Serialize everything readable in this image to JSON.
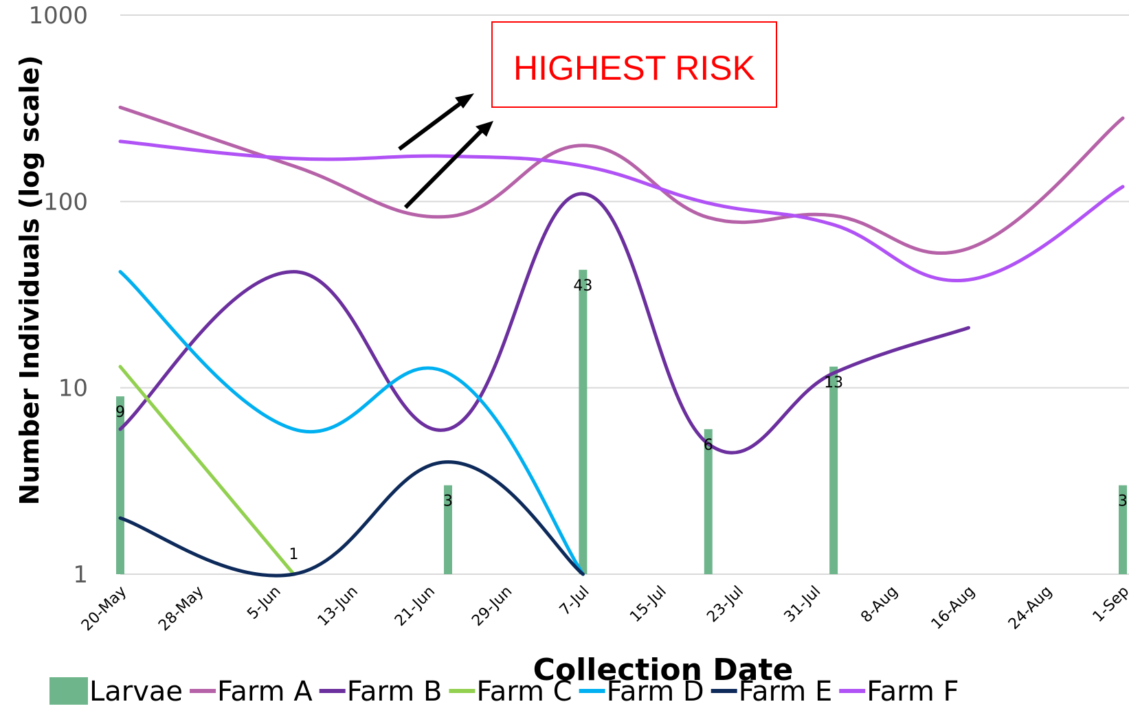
{
  "chart_data": {
    "type": "bar+line",
    "scale": "log",
    "ylabel": "Number Individuals (log scale)",
    "xlabel": "Collection Date",
    "ylim": [
      1,
      1000
    ],
    "yticks": [
      "1",
      "10",
      "100",
      "1000"
    ],
    "xticks": [
      "20-May",
      "28-May",
      "5-Jun",
      "13-Jun",
      "21-Jun",
      "29-Jun",
      "7-Jul",
      "15-Jul",
      "23-Jul",
      "31-Jul",
      "8-Aug",
      "16-Aug",
      "24-Aug",
      "1-Sep"
    ],
    "xlim": [
      "2019-05-20",
      "2019-09-01"
    ],
    "grid": true,
    "legend_position": "bottom",
    "annotation": "HIGHEST RISK",
    "bars": {
      "name": "Larvae",
      "color": "#6fb58c",
      "points": [
        {
          "date": "2019-05-20",
          "value": 9,
          "label": "9"
        },
        {
          "date": "2019-06-07",
          "value": 1,
          "label": "1"
        },
        {
          "date": "2019-06-23",
          "value": 3,
          "label": "3"
        },
        {
          "date": "2019-07-07",
          "value": 43,
          "label": "43"
        },
        {
          "date": "2019-07-20",
          "value": 6,
          "label": "6"
        },
        {
          "date": "2019-08-02",
          "value": 13,
          "label": "13"
        },
        {
          "date": "2019-09-01",
          "value": 3,
          "label": "3"
        }
      ]
    },
    "series": [
      {
        "name": "Farm A",
        "color": "#b662a8",
        "points": [
          [
            "2019-05-20",
            320
          ],
          [
            "2019-06-07",
            155
          ],
          [
            "2019-06-23",
            83
          ],
          [
            "2019-07-07",
            200
          ],
          [
            "2019-07-20",
            82
          ],
          [
            "2019-08-02",
            84
          ],
          [
            "2019-08-16",
            56
          ],
          [
            "2019-09-01",
            280
          ]
        ]
      },
      {
        "name": "Farm B",
        "color": "#6b2f9e",
        "points": [
          [
            "2019-05-20",
            6
          ],
          [
            "2019-06-07",
            42
          ],
          [
            "2019-06-23",
            6
          ],
          [
            "2019-07-07",
            110
          ],
          [
            "2019-07-20",
            5
          ],
          [
            "2019-08-02",
            12
          ],
          [
            "2019-08-16",
            21
          ]
        ]
      },
      {
        "name": "Farm C",
        "color": "#92d050",
        "points": [
          [
            "2019-05-20",
            13
          ],
          [
            "2019-06-07",
            1
          ]
        ]
      },
      {
        "name": "Farm D",
        "color": "#00b0f0",
        "points": [
          [
            "2019-05-20",
            42
          ],
          [
            "2019-06-07",
            6
          ],
          [
            "2019-06-23",
            12
          ],
          [
            "2019-07-07",
            1
          ]
        ]
      },
      {
        "name": "Farm E",
        "color": "#0d2a5a",
        "points": [
          [
            "2019-05-20",
            2
          ],
          [
            "2019-06-07",
            1
          ],
          [
            "2019-06-23",
            4
          ],
          [
            "2019-07-07",
            1
          ]
        ]
      },
      {
        "name": "Farm F",
        "color": "#b052f5",
        "points": [
          [
            "2019-05-20",
            210
          ],
          [
            "2019-06-07",
            170
          ],
          [
            "2019-06-23",
            175
          ],
          [
            "2019-07-07",
            155
          ],
          [
            "2019-07-20",
            98
          ],
          [
            "2019-08-02",
            75
          ],
          [
            "2019-08-16",
            38
          ],
          [
            "2019-09-01",
            120
          ]
        ]
      }
    ]
  }
}
